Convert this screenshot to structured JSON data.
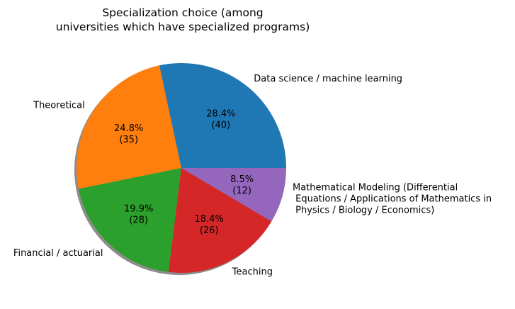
{
  "chart_data": {
    "type": "pie",
    "title": "Specialization choice (among\nuniversities which have specialized programs)",
    "shadow": true,
    "start_angle_deg": 0,
    "direction": "counterclockwise",
    "slices": [
      {
        "label": "Data science / machine learning",
        "value": 40,
        "percent": "28.4%",
        "color": "#1f77b4"
      },
      {
        "label": "Theoretical",
        "value": 35,
        "percent": "24.8%",
        "color": "#ff7f0e"
      },
      {
        "label": "Financial / actuarial",
        "value": 28,
        "percent": "19.9%",
        "color": "#2ca02c"
      },
      {
        "label": "Teaching",
        "value": 26,
        "percent": "18.4%",
        "color": "#d62728"
      },
      {
        "label": "Mathematical Modeling (Differential\n Equations / Applications of Mathematics in\n Physics / Biology / Economics)",
        "value": 12,
        "percent": "8.5%",
        "color": "#9467bd"
      }
    ]
  }
}
